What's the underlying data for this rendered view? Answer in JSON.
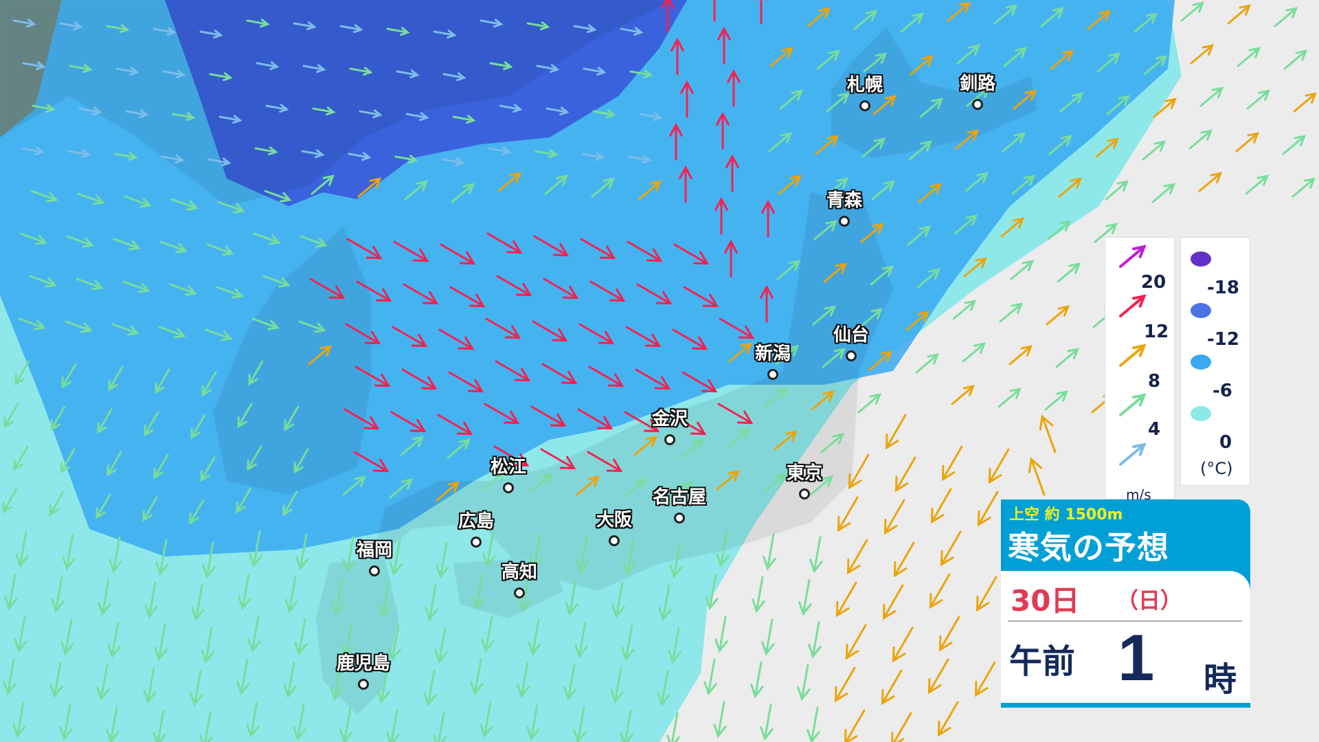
{
  "cities": [
    {
      "name": "札幌"
    },
    {
      "name": "釧路"
    },
    {
      "name": "青森"
    },
    {
      "name": "仙台"
    },
    {
      "name": "新潟"
    },
    {
      "name": "金沢"
    },
    {
      "name": "東京"
    },
    {
      "name": "松江"
    },
    {
      "name": "名古屋"
    },
    {
      "name": "広島"
    },
    {
      "name": "大阪"
    },
    {
      "name": "福岡"
    },
    {
      "name": "高知"
    },
    {
      "name": "鹿児島"
    }
  ],
  "wind_legend": {
    "unit": "m/s",
    "levels": [
      {
        "value": "20",
        "color": "#c21ad6"
      },
      {
        "value": "12",
        "color": "#f5214f"
      },
      {
        "value": "8",
        "color": "#eba40c"
      },
      {
        "value": "4",
        "color": "#78dd9a"
      },
      {
        "value": "",
        "color": "#7cbdea"
      }
    ]
  },
  "temp_legend": {
    "unit": "(°C)",
    "levels": [
      {
        "value": "-18",
        "color": "#6232c8"
      },
      {
        "value": "-12",
        "color": "#4c72e6"
      },
      {
        "value": "-6",
        "color": "#3aa9f2"
      },
      {
        "value": "0",
        "color": "#8ee8e8"
      }
    ]
  },
  "title_box": {
    "subtitle": "上空 約 1500m",
    "title": "寒気の予想",
    "date": "30日",
    "day_of_week": "（日）",
    "am_pm": "午前",
    "hour": "1",
    "hour_unit": "時"
  }
}
